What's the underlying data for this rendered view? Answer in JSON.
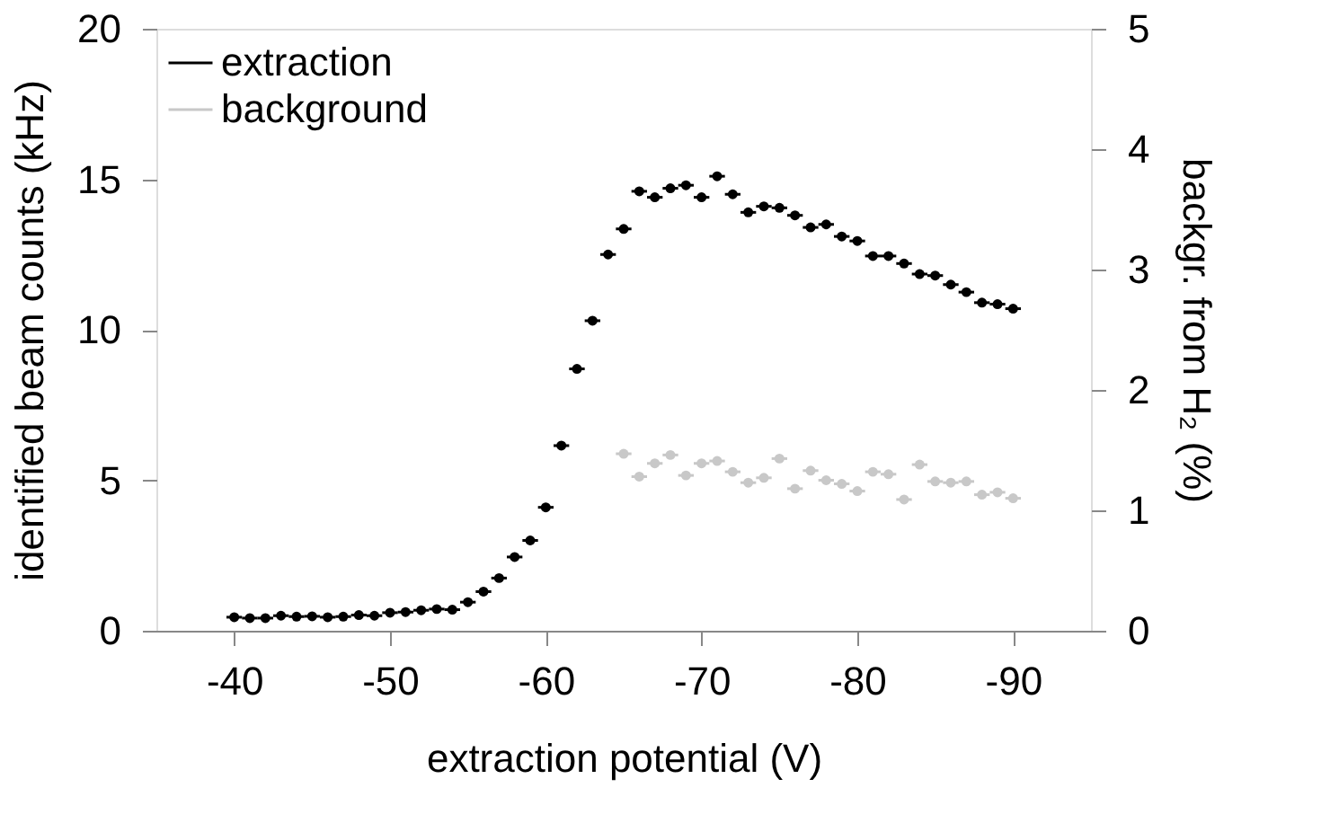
{
  "chart_data": {
    "type": "scatter",
    "xlabel": "extraction potential (V)",
    "ylabel": "identified beam counts (kHz)",
    "y2label": "backgr. from H₂ (%)",
    "xlim": [
      -35,
      -95
    ],
    "xticks": [
      -40,
      -50,
      -60,
      -70,
      -80,
      -90
    ],
    "ylim": [
      0,
      20
    ],
    "yticks": [
      0,
      5,
      10,
      15,
      20
    ],
    "y2lim": [
      0,
      5
    ],
    "y2ticks": [
      0,
      1,
      2,
      3,
      4,
      5
    ],
    "legend": "top left",
    "grid": false,
    "marker": "circle",
    "series": [
      {
        "name": "extraction",
        "color": "#000000",
        "x": [
          -40,
          -41,
          -42,
          -43,
          -44,
          -45,
          -46,
          -47,
          -48,
          -49,
          -50,
          -51,
          -52,
          -53,
          -54,
          -55,
          -56,
          -57,
          -58,
          -59,
          -60,
          -61,
          -62,
          -63,
          -64,
          -65,
          -66,
          -67,
          -68,
          -69,
          -70,
          -71,
          -72,
          -73,
          -74,
          -75,
          -76,
          -77,
          -78,
          -79,
          -80,
          -81,
          -82,
          -83,
          -84,
          -85,
          -86,
          -87,
          -88,
          -89,
          -90
        ],
        "values": [
          0.45,
          0.42,
          0.42,
          0.5,
          0.47,
          0.48,
          0.45,
          0.47,
          0.52,
          0.5,
          0.6,
          0.62,
          0.68,
          0.72,
          0.7,
          0.95,
          1.3,
          1.75,
          2.45,
          3.0,
          4.1,
          6.15,
          8.7,
          10.3,
          12.5,
          13.35,
          14.6,
          14.4,
          14.7,
          14.8,
          14.4,
          15.1,
          14.5,
          13.9,
          14.1,
          14.05,
          13.8,
          13.4,
          13.5,
          13.1,
          12.95,
          12.45,
          12.45,
          12.2,
          11.85,
          11.8,
          11.5,
          11.25,
          10.9,
          10.85,
          10.7
        ],
        "xerrors": [
          0.5,
          0.5,
          0.5,
          0.5,
          0.5,
          0.5,
          0.5,
          0.5,
          0.5,
          0.5,
          0.5,
          0.5,
          0.5,
          0.5,
          0.5,
          0.5,
          0.5,
          0.5,
          0.5,
          0.5,
          0.5,
          0.5,
          0.5,
          0.5,
          0.5,
          0.5,
          0.5,
          0.5,
          0.5,
          0.5,
          0.5,
          0.5,
          0.5,
          0.5,
          0.5,
          0.5,
          0.5,
          0.5,
          0.5,
          0.5,
          0.5,
          0.5,
          0.5,
          0.5,
          0.5,
          0.5,
          0.5,
          0.5,
          0.5,
          0.5,
          0.5
        ]
      },
      {
        "name": "background",
        "color": "#c8c8c8",
        "axis": "y2",
        "x": [
          -65,
          -66,
          -67,
          -68,
          -69,
          -70,
          -71,
          -72,
          -73,
          -74,
          -75,
          -76,
          -77,
          -78,
          -79,
          -80,
          -81,
          -82,
          -83,
          -84,
          -85,
          -86,
          -87,
          -88,
          -89,
          -90
        ],
        "values": [
          1.47,
          1.28,
          1.39,
          1.46,
          1.29,
          1.39,
          1.41,
          1.32,
          1.23,
          1.27,
          1.43,
          1.18,
          1.33,
          1.25,
          1.22,
          1.16,
          1.32,
          1.3,
          1.09,
          1.38,
          1.24,
          1.23,
          1.24,
          1.13,
          1.15,
          1.1
        ],
        "xerrors": [
          0.5,
          0.5,
          0.5,
          0.5,
          0.5,
          0.5,
          0.5,
          0.5,
          0.5,
          0.5,
          0.5,
          0.5,
          0.5,
          0.5,
          0.5,
          0.5,
          0.5,
          0.5,
          0.5,
          0.5,
          0.5,
          0.5,
          0.5,
          0.5,
          0.5,
          0.5
        ]
      }
    ]
  }
}
